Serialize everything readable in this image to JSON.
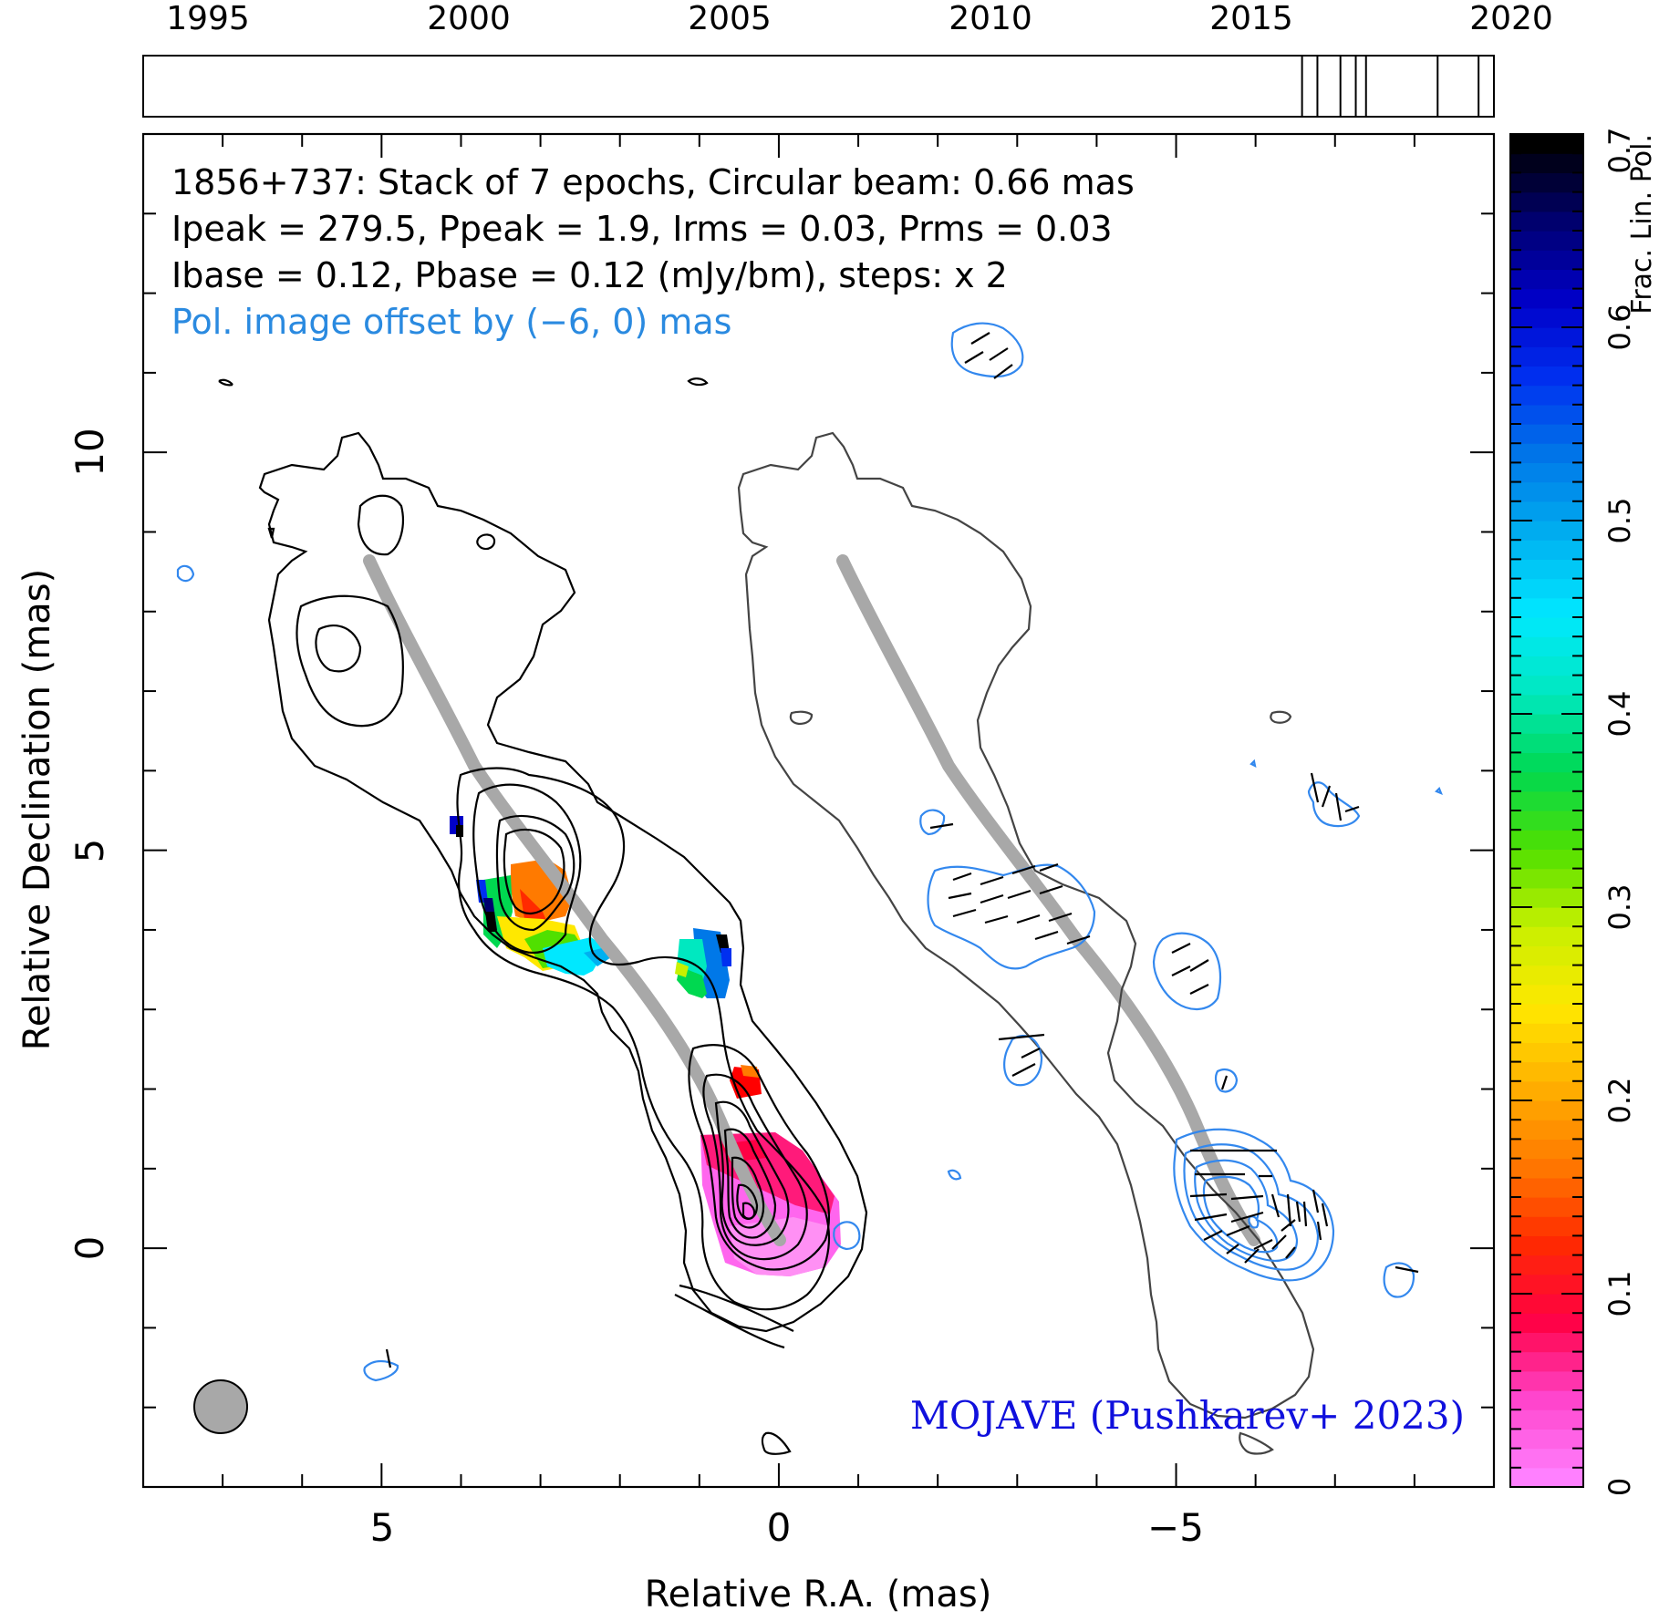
{
  "chart_data": [
    {
      "type": "epoch-timeline",
      "tick_labels": [
        "1995",
        "2000",
        "2005",
        "2010",
        "2015",
        "2020"
      ],
      "xlim": [
        1994.3,
        2020.7
      ],
      "epochs": [
        2016.95,
        2017.25,
        2017.7,
        2018.0,
        2018.2,
        2019.6,
        2020.4
      ]
    },
    {
      "type": "contour-map",
      "annotation": {
        "line1": "1856+737: Stack of 7 epochs, Circular beam: 0.66 mas",
        "line2": "Ipeak = 279.5, Ppeak = 1.9, Irms = 0.03, Prms = 0.03",
        "line3": "Ibase = 0.12, Pbase = 0.12 (mJy/bm), steps: x 2",
        "line4": "Pol. image offset by (−6, 0) mas"
      },
      "credit": "MOJAVE (Pushkarev+ 2023)",
      "xlabel": "Relative R.A. (mas)",
      "ylabel": "Relative Declination (mas)",
      "xlim": [
        8.0,
        -9.0
      ],
      "ylim": [
        -3.0,
        14.0
      ],
      "x_ticks": [
        5,
        0,
        -5
      ],
      "x_tick_labels": [
        "5",
        "0",
        "−5"
      ],
      "y_ticks": [
        0,
        5,
        10
      ],
      "y_tick_labels": [
        "0",
        "5",
        "10"
      ],
      "beam_diameter_mas": 0.66,
      "ridge_line": [
        [
          5.0,
          8.6
        ],
        [
          4.7,
          8.0
        ],
        [
          4.35,
          7.3
        ],
        [
          3.9,
          6.5
        ],
        [
          3.4,
          5.6
        ],
        [
          2.8,
          4.9
        ],
        [
          2.2,
          4.2
        ],
        [
          1.65,
          3.5
        ],
        [
          1.15,
          2.8
        ],
        [
          0.7,
          2.0
        ],
        [
          0.35,
          1.0
        ],
        [
          0.05,
          0.2
        ]
      ],
      "colorbar": {
        "label": "Frac. Lin. Pol.",
        "range": [
          0,
          0.7
        ],
        "tick_labels": [
          "0",
          "0.1",
          "0.2",
          "0.3",
          "0.4",
          "0.5",
          "0.6",
          "0.7"
        ],
        "ticks": [
          0,
          0.1,
          0.2,
          0.3,
          0.4,
          0.5,
          0.6,
          0.7
        ],
        "colors": [
          "#ff80ff",
          "#ff44cc",
          "#ff0044",
          "#ff2a00",
          "#ff7a00",
          "#ffb000",
          "#ffe800",
          "#c8f000",
          "#50e000",
          "#00d850",
          "#00e8c0",
          "#00e8ff",
          "#00b0f0",
          "#0078e8",
          "#0030f0",
          "#0000c8",
          "#000070",
          "#000000"
        ]
      },
      "colors": {
        "stokes_i_contours": "#000000",
        "pol_contours": "#3388ee",
        "ridge": "#a8a8a8",
        "annotation_pol": "#2a8ae0",
        "credit": "#1010dd",
        "beam_fill": "#a8a8a8"
      }
    }
  ]
}
